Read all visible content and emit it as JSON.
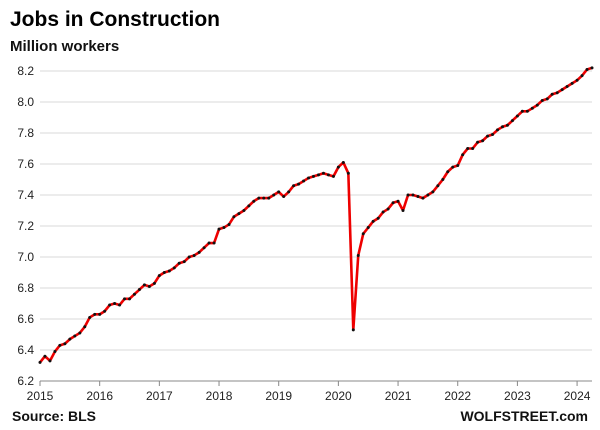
{
  "chart_data": {
    "type": "line",
    "title": "Jobs in Construction",
    "subtitle": "Million workers",
    "source": "Source: BLS",
    "credit": "WOLFSTREET.com",
    "xlabel": "",
    "ylabel": "",
    "ylim": [
      6.2,
      8.2
    ],
    "xlim": [
      2015,
      2024.25
    ],
    "y_ticks": [
      "6.2",
      "6.4",
      "6.6",
      "6.8",
      "7.0",
      "7.2",
      "7.4",
      "7.6",
      "7.8",
      "8.0",
      "8.2"
    ],
    "x_ticks": [
      "2015",
      "2016",
      "2017",
      "2018",
      "2019",
      "2020",
      "2021",
      "2022",
      "2023",
      "2024"
    ],
    "grid": true,
    "legend": "none",
    "colors": {
      "line": "#ee0000",
      "marker": "#111111",
      "grid": "#d9d9d9",
      "axis": "#888888"
    },
    "series": [
      {
        "x": [
          2015.0,
          2015.083,
          2015.167,
          2015.25,
          2015.333,
          2015.417,
          2015.5,
          2015.583,
          2015.667,
          2015.75,
          2015.833,
          2015.917,
          2016.0,
          2016.083,
          2016.167,
          2016.25,
          2016.333,
          2016.417,
          2016.5,
          2016.583,
          2016.667,
          2016.75,
          2016.833,
          2016.917,
          2017.0,
          2017.083,
          2017.167,
          2017.25,
          2017.333,
          2017.417,
          2017.5,
          2017.583,
          2017.667,
          2017.75,
          2017.833,
          2017.917,
          2018.0,
          2018.083,
          2018.167,
          2018.25,
          2018.333,
          2018.417,
          2018.5,
          2018.583,
          2018.667,
          2018.75,
          2018.833,
          2018.917,
          2019.0,
          2019.083,
          2019.167,
          2019.25,
          2019.333,
          2019.417,
          2019.5,
          2019.583,
          2019.667,
          2019.75,
          2019.833,
          2019.917,
          2020.0,
          2020.083,
          2020.167,
          2020.25,
          2020.333,
          2020.417,
          2020.5,
          2020.583,
          2020.667,
          2020.75,
          2020.833,
          2020.917,
          2021.0,
          2021.083,
          2021.167,
          2021.25,
          2021.333,
          2021.417,
          2021.5,
          2021.583,
          2021.667,
          2021.75,
          2021.833,
          2021.917,
          2022.0,
          2022.083,
          2022.167,
          2022.25,
          2022.333,
          2022.417,
          2022.5,
          2022.583,
          2022.667,
          2022.75,
          2022.833,
          2022.917,
          2023.0,
          2023.083,
          2023.167,
          2023.25,
          2023.333,
          2023.417,
          2023.5,
          2023.583,
          2023.667,
          2023.75,
          2023.833,
          2023.917,
          2024.0,
          2024.083,
          2024.167,
          2024.25
        ],
        "values": [
          6.32,
          6.36,
          6.33,
          6.39,
          6.43,
          6.44,
          6.47,
          6.49,
          6.51,
          6.55,
          6.61,
          6.63,
          6.63,
          6.65,
          6.69,
          6.7,
          6.69,
          6.73,
          6.73,
          6.76,
          6.79,
          6.82,
          6.81,
          6.83,
          6.88,
          6.9,
          6.91,
          6.93,
          6.96,
          6.97,
          7.0,
          7.01,
          7.03,
          7.06,
          7.09,
          7.09,
          7.18,
          7.19,
          7.21,
          7.26,
          7.28,
          7.3,
          7.33,
          7.36,
          7.38,
          7.38,
          7.38,
          7.4,
          7.42,
          7.39,
          7.42,
          7.46,
          7.47,
          7.49,
          7.51,
          7.52,
          7.53,
          7.54,
          7.53,
          7.52,
          7.58,
          7.61,
          7.54,
          6.53,
          7.01,
          7.15,
          7.19,
          7.23,
          7.25,
          7.29,
          7.31,
          7.35,
          7.36,
          7.3,
          7.4,
          7.4,
          7.39,
          7.38,
          7.4,
          7.42,
          7.46,
          7.5,
          7.55,
          7.58,
          7.59,
          7.66,
          7.7,
          7.7,
          7.74,
          7.75,
          7.78,
          7.79,
          7.82,
          7.84,
          7.85,
          7.88,
          7.91,
          7.94,
          7.94,
          7.96,
          7.98,
          8.01,
          8.02,
          8.05,
          8.06,
          8.08,
          8.1,
          8.12,
          8.14,
          8.17,
          8.21,
          8.22
        ]
      }
    ]
  }
}
